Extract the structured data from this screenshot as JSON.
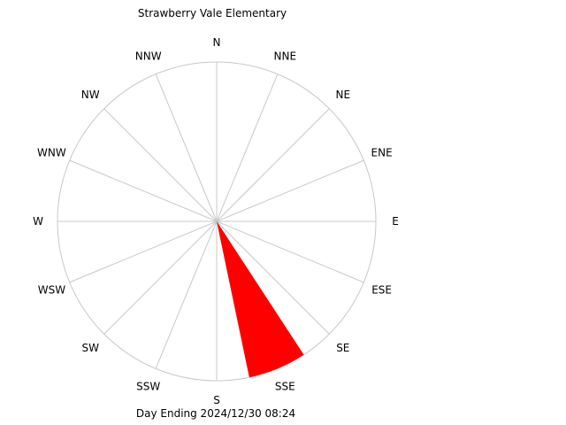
{
  "chart_data": {
    "type": "wind-rose",
    "title": "Strawberry Vale Elementary",
    "footer": "Day Ending 2024/12/30 08:24",
    "directions": [
      "N",
      "NNE",
      "NE",
      "ENE",
      "E",
      "ESE",
      "SE",
      "SSE",
      "S",
      "SSW",
      "SW",
      "WSW",
      "W",
      "WNW",
      "NW",
      "NNW"
    ],
    "values": [
      0,
      0,
      0,
      0,
      0,
      0,
      0,
      100,
      0,
      0,
      0,
      0,
      0,
      0,
      0,
      0
    ],
    "max_value": 100,
    "grid": true,
    "colors": {
      "wedge": "#ff0000",
      "grid": "#c8c8c8",
      "text": "#000000"
    }
  }
}
